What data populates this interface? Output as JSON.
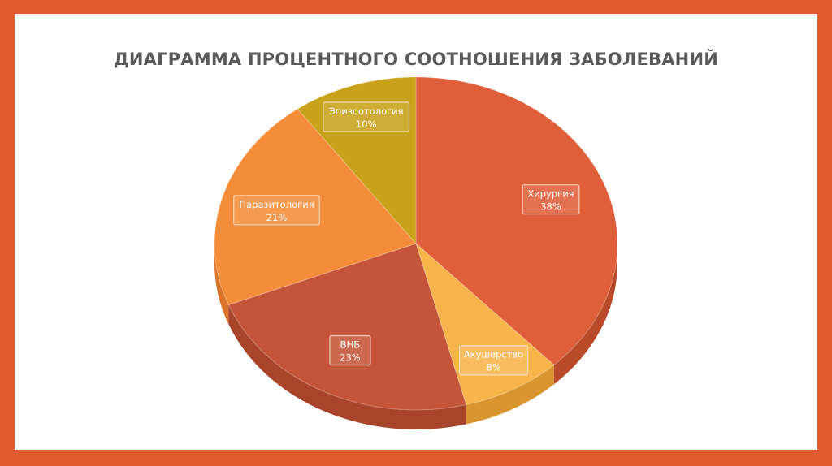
{
  "chart_data": {
    "type": "pie",
    "title": "ДИАГРАММА ПРОЦЕНТНОГО СООТНОШЕНИЯ ЗАБОЛЕВАНИЙ",
    "three_d": true,
    "legend": "none",
    "slices": [
      {
        "label": "Хирургия",
        "value": 38,
        "display": "38%",
        "color": "#de5f3a",
        "side": "#b94a2a"
      },
      {
        "label": "Акушерство",
        "value": 8,
        "display": "8%",
        "color": "#f6b44a",
        "side": "#d99530"
      },
      {
        "label": "ВНБ",
        "value": 23,
        "display": "23%",
        "color": "#c4553a",
        "side": "#a9442c"
      },
      {
        "label": "Паразитология",
        "value": 21,
        "display": "21%",
        "color": "#f48d3a",
        "side": "#d9742a"
      },
      {
        "label": "Эпизоотология",
        "value": 10,
        "display": "10%",
        "color": "#c9a21c",
        "side": "#a88514"
      }
    ]
  },
  "colors": {
    "frame": "#e05a2b",
    "background": "#ffffff",
    "title": "#595959"
  }
}
